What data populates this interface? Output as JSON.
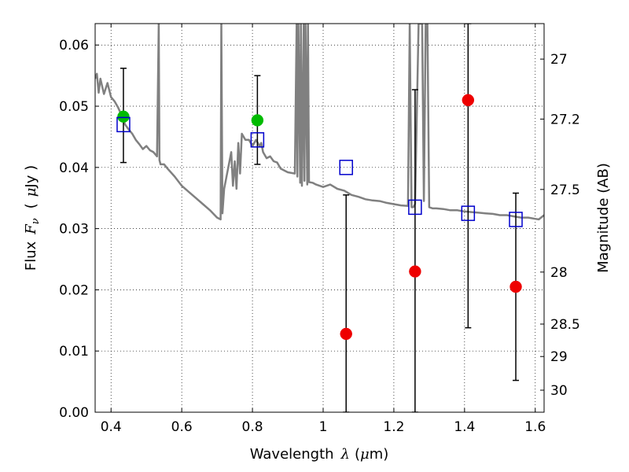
{
  "chart_data": {
    "type": "scatter",
    "title": "",
    "xlabel": "Wavelength",
    "xlabel_symbol": "λ",
    "xlabel_unit_open": "(",
    "xlabel_unit_mu": "μ",
    "xlabel_unit_rest": "m)",
    "ylabel": "Flux",
    "ylabel_symbol": "F",
    "ylabel_symbol_sub": "ν",
    "ylabel_unit_open": "(",
    "ylabel_unit_mu": "μ",
    "ylabel_unit_rest": "Jy )",
    "y2label": "Magnitude (AB)",
    "xlim": [
      0.355,
      1.625
    ],
    "ylim": [
      0.0,
      0.0635
    ],
    "grid": true,
    "grid_style": "dotted",
    "x_ticks": [
      {
        "value": 0.4,
        "label": "0.4"
      },
      {
        "value": 0.6,
        "label": "0.6"
      },
      {
        "value": 0.8,
        "label": "0.8"
      },
      {
        "value": 1.0,
        "label": "1"
      },
      {
        "value": 1.2,
        "label": "1.2"
      },
      {
        "value": 1.4,
        "label": "1.4"
      },
      {
        "value": 1.6,
        "label": "1.6"
      }
    ],
    "y_ticks": [
      {
        "value": 0.0,
        "label": "0.00"
      },
      {
        "value": 0.01,
        "label": "0.01"
      },
      {
        "value": 0.02,
        "label": "0.02"
      },
      {
        "value": 0.03,
        "label": "0.03"
      },
      {
        "value": 0.04,
        "label": "0.04"
      },
      {
        "value": 0.05,
        "label": "0.05"
      },
      {
        "value": 0.06,
        "label": "0.06"
      }
    ],
    "y2_ticks": [
      {
        "flux": 0.0577,
        "label": "27"
      },
      {
        "flux": 0.0479,
        "label": "27.2"
      },
      {
        "flux": 0.0364,
        "label": "27.5"
      },
      {
        "flux": 0.0229,
        "label": "28"
      },
      {
        "flux": 0.0144,
        "label": "28.5"
      },
      {
        "flux": 0.0091,
        "label": "29"
      },
      {
        "flux": 0.0036,
        "label": "30"
      }
    ],
    "colors": {
      "template": "#808080",
      "green": "#00bb00",
      "red": "#ee0000",
      "blue": "#0000cc",
      "errorbar": "#000000"
    },
    "model_spectrum": {
      "style": "solid grey line",
      "x": [
        0.355,
        0.36,
        0.365,
        0.37,
        0.38,
        0.39,
        0.4,
        0.41,
        0.42,
        0.43,
        0.44,
        0.45,
        0.46,
        0.47,
        0.48,
        0.49,
        0.5,
        0.51,
        0.52,
        0.53,
        0.535,
        0.537,
        0.54,
        0.55,
        0.56,
        0.58,
        0.6,
        0.62,
        0.64,
        0.66,
        0.68,
        0.7,
        0.71,
        0.712,
        0.715,
        0.72,
        0.73,
        0.74,
        0.745,
        0.75,
        0.755,
        0.76,
        0.765,
        0.77,
        0.78,
        0.79,
        0.8,
        0.81,
        0.82,
        0.825,
        0.83,
        0.84,
        0.85,
        0.86,
        0.87,
        0.88,
        0.9,
        0.92,
        0.925,
        0.927,
        0.93,
        0.935,
        0.937,
        0.94,
        0.945,
        0.947,
        0.95,
        0.955,
        0.957,
        0.96,
        0.97,
        0.98,
        1.0,
        1.02,
        1.04,
        1.06,
        1.08,
        1.1,
        1.12,
        1.14,
        1.16,
        1.18,
        1.2,
        1.22,
        1.24,
        1.245,
        1.25,
        1.255,
        1.26,
        1.27,
        1.28,
        1.285,
        1.29,
        1.295,
        1.3,
        1.31,
        1.32,
        1.34,
        1.36,
        1.38,
        1.4,
        1.42,
        1.44,
        1.46,
        1.48,
        1.5,
        1.52,
        1.54,
        1.56,
        1.58,
        1.6,
        1.61,
        1.625
      ],
      "y": [
        0.0545,
        0.0553,
        0.0522,
        0.0545,
        0.052,
        0.0538,
        0.0515,
        0.0508,
        0.0498,
        0.0485,
        0.047,
        0.0462,
        0.0455,
        0.0445,
        0.0438,
        0.043,
        0.0435,
        0.0428,
        0.0425,
        0.0418,
        0.0635,
        0.0412,
        0.0405,
        0.0405,
        0.0398,
        0.0385,
        0.037,
        0.036,
        0.035,
        0.034,
        0.033,
        0.0318,
        0.0315,
        0.0635,
        0.0325,
        0.0365,
        0.0395,
        0.0425,
        0.037,
        0.041,
        0.0365,
        0.044,
        0.039,
        0.0455,
        0.0445,
        0.0445,
        0.0435,
        0.0445,
        0.0435,
        0.044,
        0.0425,
        0.0415,
        0.0418,
        0.041,
        0.0408,
        0.0398,
        0.0392,
        0.039,
        0.0635,
        0.0385,
        0.0635,
        0.0375,
        0.0635,
        0.037,
        0.0635,
        0.0378,
        0.0635,
        0.0372,
        0.0635,
        0.0376,
        0.0375,
        0.0372,
        0.0368,
        0.0372,
        0.0365,
        0.0362,
        0.0355,
        0.0352,
        0.0348,
        0.0346,
        0.0345,
        0.0342,
        0.034,
        0.0338,
        0.0337,
        0.0635,
        0.0335,
        0.0335,
        0.034,
        0.0635,
        0.0635,
        0.0345,
        0.0635,
        0.0635,
        0.0335,
        0.0333,
        0.0333,
        0.0332,
        0.033,
        0.033,
        0.0328,
        0.0327,
        0.0326,
        0.0325,
        0.0324,
        0.0322,
        0.0322,
        0.032,
        0.0318,
        0.0318,
        0.0316,
        0.0315,
        0.0322
      ]
    },
    "series": [
      {
        "marker": "filled circle",
        "color": "green",
        "points": [
          {
            "x": 0.435,
            "y": 0.0483
          },
          {
            "x": 0.814,
            "y": 0.0477
          }
        ]
      },
      {
        "marker": "filled circle",
        "color": "red",
        "points": [
          {
            "x": 1.065,
            "y": 0.0128
          },
          {
            "x": 1.26,
            "y": 0.023
          },
          {
            "x": 1.41,
            "y": 0.051
          },
          {
            "x": 1.545,
            "y": 0.0205
          }
        ]
      },
      {
        "marker": "open square",
        "color": "blue",
        "points": [
          {
            "x": 0.435,
            "y": 0.047
          },
          {
            "x": 0.814,
            "y": 0.0445
          },
          {
            "x": 1.065,
            "y": 0.04
          },
          {
            "x": 1.26,
            "y": 0.0335
          },
          {
            "x": 1.41,
            "y": 0.0325
          },
          {
            "x": 1.545,
            "y": 0.0315
          }
        ]
      }
    ],
    "error_bars": [
      {
        "x": 0.435,
        "low": 0.0408,
        "high": 0.0562
      },
      {
        "x": 0.814,
        "low": 0.0405,
        "high": 0.055
      },
      {
        "x": 1.065,
        "low": 0.0,
        "high": 0.0355
      },
      {
        "x": 1.26,
        "low": 0.0,
        "high": 0.0527
      },
      {
        "x": 1.41,
        "low": 0.0138,
        "high": 0.0635
      },
      {
        "x": 1.545,
        "low": 0.0052,
        "high": 0.0358
      }
    ]
  }
}
